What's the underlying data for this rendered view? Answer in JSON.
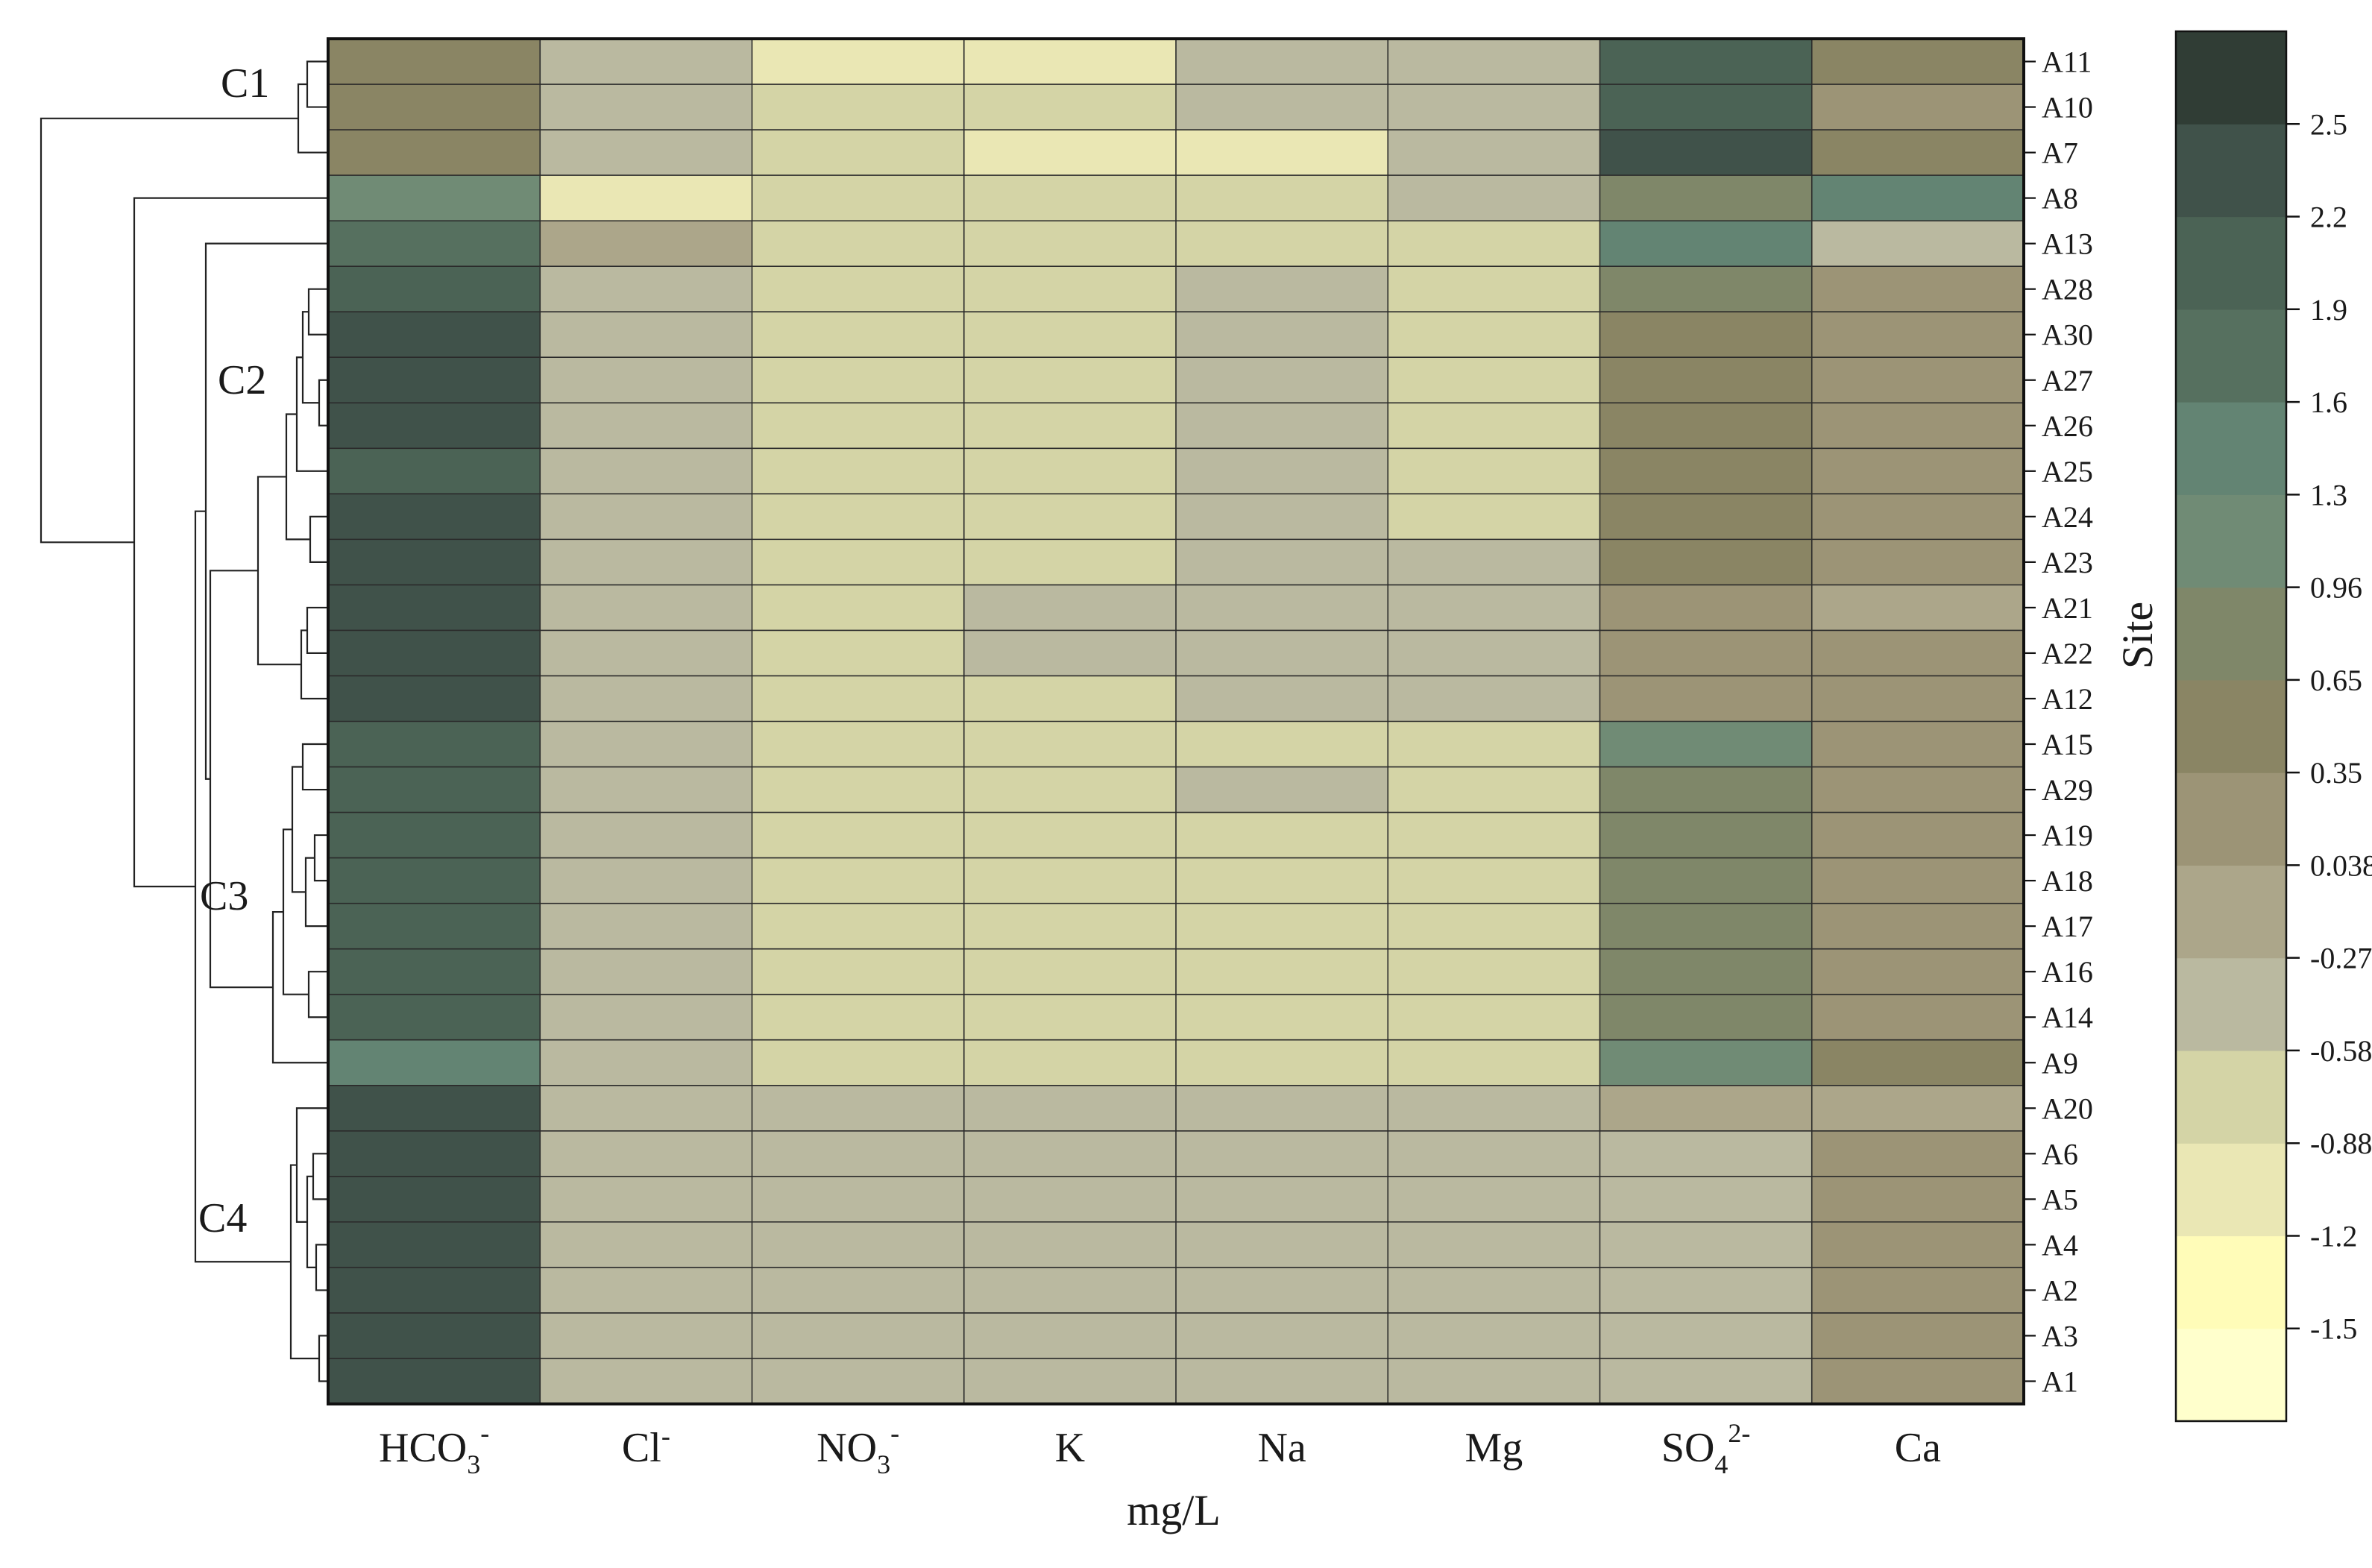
{
  "chart_data": {
    "type": "heatmap",
    "xlabel": "mg/L",
    "ylabel": "Site",
    "columns": [
      {
        "base": "HCO",
        "sub": "3",
        "sup": "-"
      },
      {
        "base": "Cl",
        "sub": "",
        "sup": "-"
      },
      {
        "base": "NO",
        "sub": "3",
        "sup": "-"
      },
      {
        "base": "K",
        "sub": "",
        "sup": ""
      },
      {
        "base": "Na",
        "sub": "",
        "sup": ""
      },
      {
        "base": "Mg",
        "sub": "",
        "sup": ""
      },
      {
        "base": "SO",
        "sub": "4",
        "sup": "2-"
      },
      {
        "base": "Ca",
        "sub": "",
        "sup": ""
      }
    ],
    "rows": [
      "A11",
      "A10",
      "A7",
      "A8",
      "A13",
      "A28",
      "A30",
      "A27",
      "A26",
      "A25",
      "A24",
      "A23",
      "A21",
      "A22",
      "A12",
      "A15",
      "A29",
      "A19",
      "A18",
      "A17",
      "A16",
      "A14",
      "A9",
      "A20",
      "A6",
      "A5",
      "A4",
      "A2",
      "A3",
      "A1"
    ],
    "values": [
      [
        0.5,
        -0.5,
        -0.95,
        -0.95,
        -0.35,
        -0.4,
        2.0,
        0.45
      ],
      [
        0.5,
        -0.5,
        -0.85,
        -0.85,
        -0.35,
        -0.4,
        2.0,
        0.15
      ],
      [
        0.5,
        -0.5,
        -0.85,
        -0.95,
        -0.95,
        -0.4,
        2.4,
        0.5
      ],
      [
        1.2,
        -0.95,
        -0.85,
        -0.85,
        -0.85,
        -0.4,
        0.8,
        1.5
      ],
      [
        1.8,
        0.0,
        -0.85,
        -0.85,
        -0.85,
        -0.85,
        1.5,
        -0.4
      ],
      [
        2.1,
        -0.4,
        -0.8,
        -0.8,
        -0.35,
        -0.8,
        0.8,
        0.15
      ],
      [
        2.4,
        -0.4,
        -0.8,
        -0.8,
        -0.35,
        -0.8,
        0.5,
        0.15
      ],
      [
        2.4,
        -0.4,
        -0.8,
        -0.8,
        -0.4,
        -0.8,
        0.5,
        0.15
      ],
      [
        2.4,
        -0.4,
        -0.8,
        -0.8,
        -0.4,
        -0.8,
        0.5,
        0.15
      ],
      [
        2.0,
        -0.4,
        -0.8,
        -0.8,
        -0.4,
        -0.8,
        0.5,
        0.15
      ],
      [
        2.4,
        -0.4,
        -0.8,
        -0.8,
        -0.4,
        -0.8,
        0.5,
        0.15
      ],
      [
        2.4,
        -0.4,
        -0.8,
        -0.8,
        -0.4,
        -0.4,
        0.5,
        0.15
      ],
      [
        2.4,
        -0.4,
        -0.8,
        -0.4,
        -0.4,
        -0.4,
        0.15,
        -0.2
      ],
      [
        2.4,
        -0.4,
        -0.8,
        -0.4,
        -0.4,
        -0.4,
        0.15,
        0.15
      ],
      [
        2.4,
        -0.4,
        -0.8,
        -0.8,
        -0.4,
        -0.4,
        0.15,
        0.15
      ],
      [
        2.0,
        -0.4,
        -0.8,
        -0.8,
        -0.8,
        -0.8,
        1.2,
        0.15
      ],
      [
        2.0,
        -0.4,
        -0.8,
        -0.8,
        -0.4,
        -0.8,
        0.8,
        0.15
      ],
      [
        2.0,
        -0.4,
        -0.8,
        -0.8,
        -0.8,
        -0.8,
        0.8,
        0.15
      ],
      [
        2.0,
        -0.4,
        -0.8,
        -0.8,
        -0.8,
        -0.8,
        0.8,
        0.15
      ],
      [
        2.0,
        -0.4,
        -0.8,
        -0.8,
        -0.8,
        -0.8,
        0.8,
        0.15
      ],
      [
        2.0,
        -0.4,
        -0.8,
        -0.8,
        -0.8,
        -0.8,
        0.8,
        0.15
      ],
      [
        2.0,
        -0.4,
        -0.8,
        -0.8,
        -0.8,
        -0.8,
        0.8,
        0.15
      ],
      [
        1.5,
        -0.4,
        -0.8,
        -0.8,
        -0.8,
        -0.8,
        1.2,
        0.5
      ],
      [
        2.4,
        -0.4,
        -0.4,
        -0.4,
        -0.4,
        -0.4,
        -0.15,
        -0.15
      ],
      [
        2.4,
        -0.4,
        -0.4,
        -0.4,
        -0.4,
        -0.4,
        -0.4,
        0.15
      ],
      [
        2.4,
        -0.4,
        -0.4,
        -0.4,
        -0.4,
        -0.4,
        -0.4,
        0.15
      ],
      [
        2.4,
        -0.4,
        -0.4,
        -0.4,
        -0.4,
        -0.4,
        -0.4,
        0.15
      ],
      [
        2.4,
        -0.4,
        -0.4,
        -0.4,
        -0.4,
        -0.4,
        -0.4,
        0.15
      ],
      [
        2.4,
        -0.4,
        -0.4,
        -0.4,
        -0.4,
        -0.4,
        -0.4,
        0.15
      ],
      [
        2.4,
        -0.4,
        -0.4,
        -0.4,
        -0.4,
        -0.4,
        -0.4,
        0.15
      ]
    ],
    "colorbar": {
      "boundaries": [
        -1.8,
        -1.5,
        -1.2,
        -0.88,
        -0.58,
        -0.27,
        0.038,
        0.35,
        0.65,
        0.96,
        1.3,
        1.6,
        1.9,
        2.2,
        2.5,
        2.9
      ],
      "tick_labels": [
        "-1.5",
        "-1.2",
        "-0.88",
        "-0.58",
        "-0.27",
        "0.038",
        "0.35",
        "0.65",
        "0.96",
        "1.3",
        "1.6",
        "1.9",
        "2.2",
        "2.5"
      ],
      "colors": [
        "#FFFFCC",
        "#FFFCB8",
        "#EAE7B4",
        "#D4D4A6",
        "#BAB9A0",
        "#ACA68A",
        "#9C9476",
        "#8A8564",
        "#7F8769",
        "#708B75",
        "#638473",
        "#56705F",
        "#4B6355",
        "#40524A",
        "#303D35"
      ]
    },
    "clusters": [
      {
        "label": "C1",
        "rows": [
          "A11",
          "A10",
          "A7"
        ]
      },
      {
        "label": "C2",
        "rows": [
          "A8",
          "A13",
          "A28",
          "A30",
          "A27",
          "A26",
          "A25",
          "A24",
          "A23",
          "A21",
          "A22",
          "A12"
        ]
      },
      {
        "label": "C3",
        "rows": [
          "A15",
          "A29",
          "A19",
          "A18",
          "A17",
          "A16",
          "A14",
          "A9"
        ]
      },
      {
        "label": "C4",
        "rows": [
          "A20",
          "A6",
          "A5",
          "A4",
          "A2",
          "A3",
          "A1"
        ]
      }
    ]
  }
}
